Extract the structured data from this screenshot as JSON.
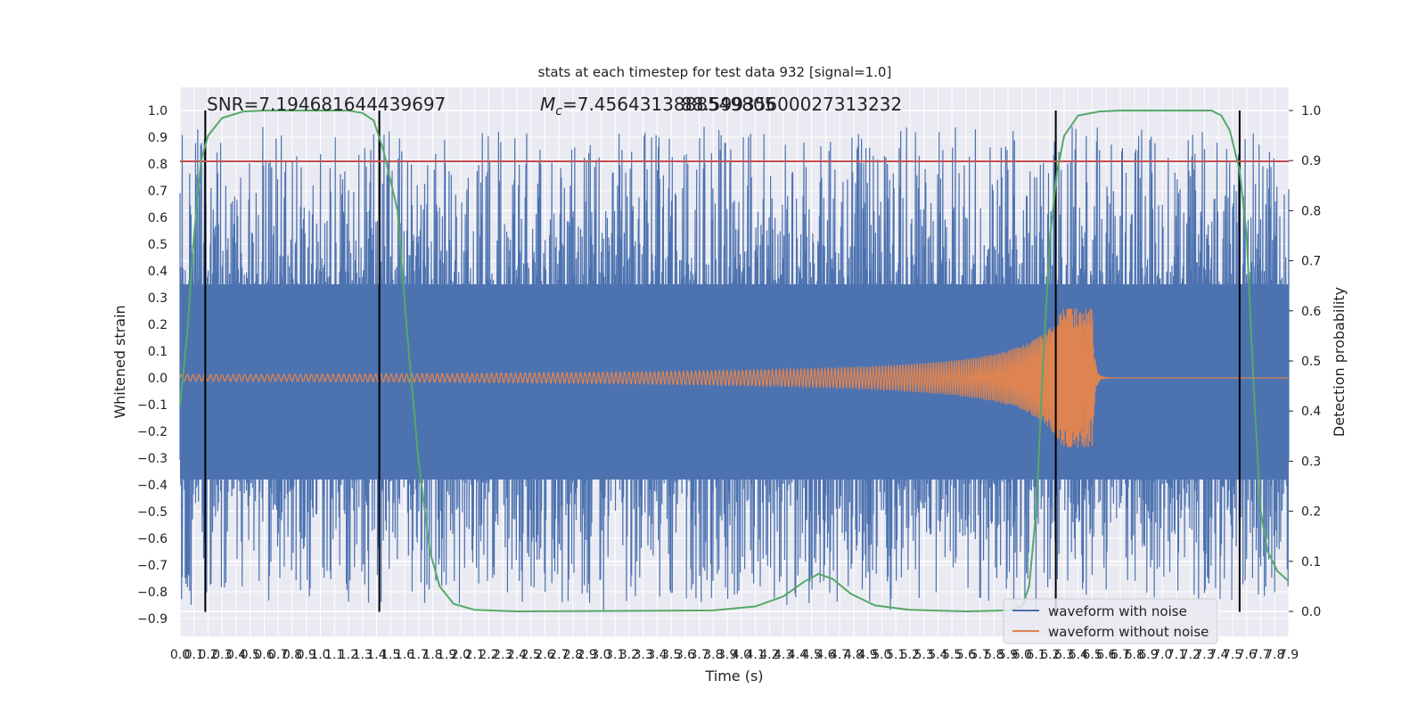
{
  "chart_data": {
    "type": "line",
    "title": "stats at each timestep for test data 932 [signal=1.0]",
    "xlabel": "Time (s)",
    "ylabel": "Whitened strain",
    "y2label": "Detection probability",
    "annotations": {
      "snr": "SNR=7.194681644439697",
      "mc": "=7.4564313888549805",
      "mc_overlap": "88.59935600027313232",
      "mc_prefix_symbol": "M",
      "mc_prefix_subscript": "c"
    },
    "xlim": [
      0.0,
      7.9
    ],
    "ylim": [
      -1.0,
      1.05
    ],
    "y2lim": [
      -0.05,
      1.05
    ],
    "xticks": [
      "0.0",
      "0.1",
      "0.2",
      "0.3",
      "0.4",
      "0.5",
      "0.6",
      "0.7",
      "0.8",
      "0.9",
      "1.0",
      "1.1",
      "1.2",
      "1.3",
      "1.4",
      "1.5",
      "1.6",
      "1.7",
      "1.8",
      "1.9",
      "2.0",
      "2.1",
      "2.2",
      "2.3",
      "2.4",
      "2.5",
      "2.6",
      "2.7",
      "2.8",
      "2.9",
      "3.0",
      "3.1",
      "3.2",
      "3.3",
      "3.4",
      "3.5",
      "3.6",
      "3.7",
      "3.8",
      "3.9",
      "4.0",
      "4.1",
      "4.2",
      "4.3",
      "4.4",
      "4.5",
      "4.6",
      "4.7",
      "4.8",
      "4.9",
      "5.0",
      "5.1",
      "5.2",
      "5.3",
      "5.4",
      "5.5",
      "5.6",
      "5.7",
      "5.8",
      "5.9",
      "6.0",
      "6.1",
      "6.2",
      "6.3",
      "6.4",
      "6.5",
      "6.6",
      "6.7",
      "6.8",
      "6.9",
      "7.0",
      "7.1",
      "7.2",
      "7.3",
      "7.4",
      "7.5",
      "7.6",
      "7.7",
      "7.8",
      "7.9"
    ],
    "yticks": [
      "1.0",
      "0.9",
      "0.8",
      "0.7",
      "0.6",
      "0.5",
      "0.4",
      "0.3",
      "0.2",
      "0.1",
      "0.0",
      "−0.1",
      "−0.2",
      "−0.3",
      "−0.4",
      "−0.5",
      "−0.6",
      "−0.7",
      "−0.8",
      "−0.9"
    ],
    "y2ticks": [
      "1.0",
      "0.9",
      "0.8",
      "0.7",
      "0.6",
      "0.5",
      "0.4",
      "0.3",
      "0.2",
      "0.1",
      "0.0"
    ],
    "threshold_line": {
      "y": 0.81,
      "color": "#c44e52"
    },
    "event_markers_x": [
      0.18,
      1.42,
      6.24,
      7.55
    ],
    "series": [
      {
        "name": "waveform with noise",
        "color": "#4c72b0",
        "kind": "noise",
        "envelope_typical": 0.45,
        "peak_max": 0.94
      },
      {
        "name": "waveform without noise",
        "color": "#dd8452",
        "kind": "chirp",
        "start_x": 0.0,
        "merger_x": 6.5,
        "start_amplitude": 0.012,
        "peak_amplitude": 0.26
      },
      {
        "name": "",
        "color": "#55a868",
        "kind": "probability",
        "axis": "right",
        "points": [
          [
            0.0,
            0.41
          ],
          [
            0.05,
            0.55
          ],
          [
            0.1,
            0.75
          ],
          [
            0.15,
            0.9
          ],
          [
            0.2,
            0.95
          ],
          [
            0.3,
            0.985
          ],
          [
            0.45,
            0.998
          ],
          [
            0.6,
            1.0
          ],
          [
            1.2,
            1.0
          ],
          [
            1.3,
            0.995
          ],
          [
            1.38,
            0.98
          ],
          [
            1.45,
            0.92
          ],
          [
            1.55,
            0.8
          ],
          [
            1.62,
            0.55
          ],
          [
            1.7,
            0.3
          ],
          [
            1.78,
            0.12
          ],
          [
            1.85,
            0.05
          ],
          [
            1.95,
            0.015
          ],
          [
            2.1,
            0.003
          ],
          [
            2.4,
            0.0
          ],
          [
            3.8,
            0.002
          ],
          [
            4.1,
            0.01
          ],
          [
            4.3,
            0.03
          ],
          [
            4.45,
            0.06
          ],
          [
            4.55,
            0.075
          ],
          [
            4.65,
            0.065
          ],
          [
            4.78,
            0.035
          ],
          [
            4.95,
            0.012
          ],
          [
            5.2,
            0.003
          ],
          [
            5.6,
            0.0
          ],
          [
            5.9,
            0.002
          ],
          [
            6.0,
            0.01
          ],
          [
            6.05,
            0.05
          ],
          [
            6.1,
            0.2
          ],
          [
            6.15,
            0.5
          ],
          [
            6.2,
            0.75
          ],
          [
            6.25,
            0.88
          ],
          [
            6.3,
            0.95
          ],
          [
            6.4,
            0.99
          ],
          [
            6.55,
            0.998
          ],
          [
            6.7,
            1.0
          ],
          [
            7.35,
            1.0
          ],
          [
            7.42,
            0.99
          ],
          [
            7.48,
            0.96
          ],
          [
            7.55,
            0.88
          ],
          [
            7.6,
            0.75
          ],
          [
            7.65,
            0.45
          ],
          [
            7.7,
            0.2
          ],
          [
            7.75,
            0.12
          ],
          [
            7.82,
            0.08
          ],
          [
            7.9,
            0.06
          ]
        ]
      }
    ],
    "legend": {
      "placement": "lower-right"
    },
    "grid": true
  }
}
